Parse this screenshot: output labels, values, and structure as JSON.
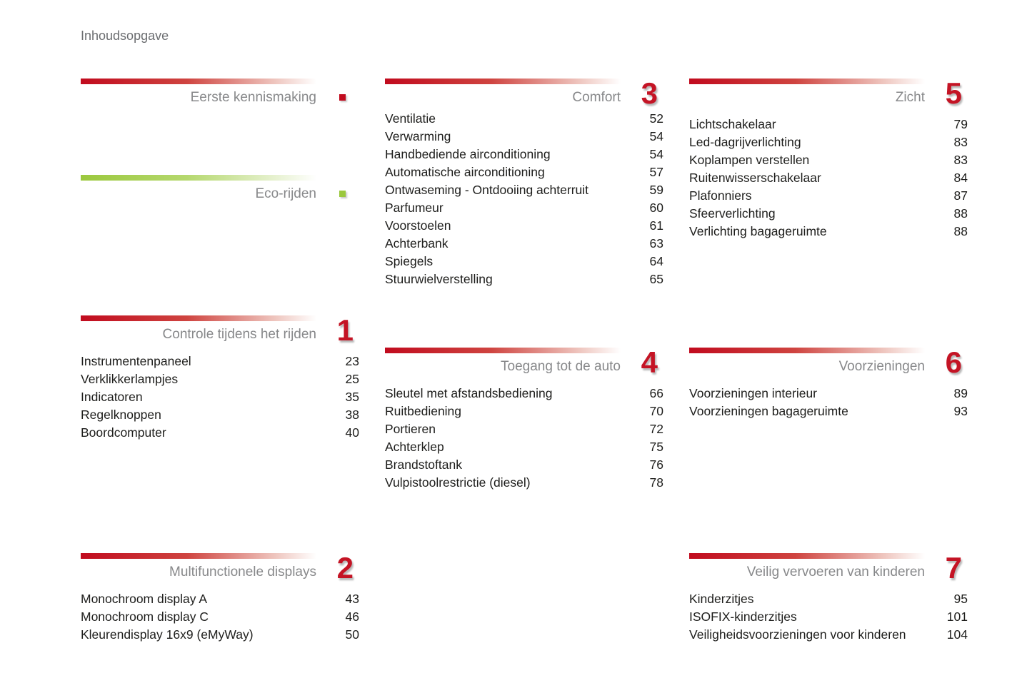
{
  "page": {
    "title": "Inhoudsopgave"
  },
  "colors": {
    "red": "#c10b1e",
    "green": "#9bc83d",
    "number_red": "#c41425"
  },
  "sections": [
    {
      "id": "eerste-kennismaking",
      "title": "Eerste kennismaking",
      "theme": "red",
      "marker": "red-square-icon",
      "items": []
    },
    {
      "id": "eco-rijden",
      "title": "Eco-rijden",
      "theme": "green",
      "marker": "green-square-icon",
      "items": []
    },
    {
      "id": "controle-tijdens-het-rijden",
      "title": "Controle tijdens het rijden",
      "theme": "red",
      "number": "1",
      "items": [
        {
          "label": "Instrumentenpaneel",
          "page": "23"
        },
        {
          "label": "Verklikkerlampjes",
          "page": "25"
        },
        {
          "label": "Indicatoren",
          "page": "35"
        },
        {
          "label": "Regelknoppen",
          "page": "38"
        },
        {
          "label": "Boordcomputer",
          "page": "40"
        }
      ]
    },
    {
      "id": "multifunctionele-displays",
      "title": "Multifunctionele displays",
      "theme": "red",
      "number": "2",
      "items": [
        {
          "label": "Monochroom display A",
          "page": "43"
        },
        {
          "label": "Monochroom display C",
          "page": "46"
        },
        {
          "label": "Kleurendisplay 16x9 (eMyWay)",
          "page": "50"
        }
      ]
    },
    {
      "id": "comfort",
      "title": "Comfort",
      "theme": "red",
      "number": "3",
      "items": [
        {
          "label": "Ventilatie",
          "page": "52"
        },
        {
          "label": "Verwarming",
          "page": "54"
        },
        {
          "label": "Handbediende airconditioning",
          "page": "54"
        },
        {
          "label": "Automatische airconditioning",
          "page": "57"
        },
        {
          "label": "Ontwaseming - Ontdooiing achterruit",
          "page": "59"
        },
        {
          "label": "Parfumeur",
          "page": "60"
        },
        {
          "label": "Voorstoelen",
          "page": "61"
        },
        {
          "label": "Achterbank",
          "page": "63"
        },
        {
          "label": "Spiegels",
          "page": "64"
        },
        {
          "label": "Stuurwielverstelling",
          "page": "65"
        }
      ]
    },
    {
      "id": "toegang-tot-de-auto",
      "title": "Toegang tot de auto",
      "theme": "red",
      "number": "4",
      "items": [
        {
          "label": "Sleutel met afstandsbediening",
          "page": "66"
        },
        {
          "label": "Ruitbediening",
          "page": "70"
        },
        {
          "label": "Portieren",
          "page": "72"
        },
        {
          "label": "Achterklep",
          "page": "75"
        },
        {
          "label": "Brandstoftank",
          "page": "76"
        },
        {
          "label": "Vulpistoolrestrictie (diesel)",
          "page": "78"
        }
      ]
    },
    {
      "id": "zicht",
      "title": "Zicht",
      "theme": "red",
      "number": "5",
      "items": [
        {
          "label": "Lichtschakelaar",
          "page": "79"
        },
        {
          "label": "Led-dagrijverlichting",
          "page": "83"
        },
        {
          "label": "Koplampen verstellen",
          "page": "83"
        },
        {
          "label": "Ruitenwisserschakelaar",
          "page": "84"
        },
        {
          "label": "Plafonniers",
          "page": "87"
        },
        {
          "label": "Sfeerverlichting",
          "page": "88"
        },
        {
          "label": "Verlichting bagageruimte",
          "page": "88"
        }
      ]
    },
    {
      "id": "voorzieningen",
      "title": "Voorzieningen",
      "theme": "red",
      "number": "6",
      "items": [
        {
          "label": "Voorzieningen interieur",
          "page": "89"
        },
        {
          "label": "Voorzieningen bagageruimte",
          "page": "93"
        }
      ]
    },
    {
      "id": "veilig-vervoeren-van-kinderen",
      "title": "Veilig vervoeren van kinderen",
      "theme": "red",
      "number": "7",
      "items": [
        {
          "label": "Kinderzitjes",
          "page": "95"
        },
        {
          "label": "ISOFIX-kinderzitjes",
          "page": "101"
        },
        {
          "label": "Veiligheidsvoorzieningen voor kinderen",
          "page": "104"
        }
      ]
    }
  ]
}
